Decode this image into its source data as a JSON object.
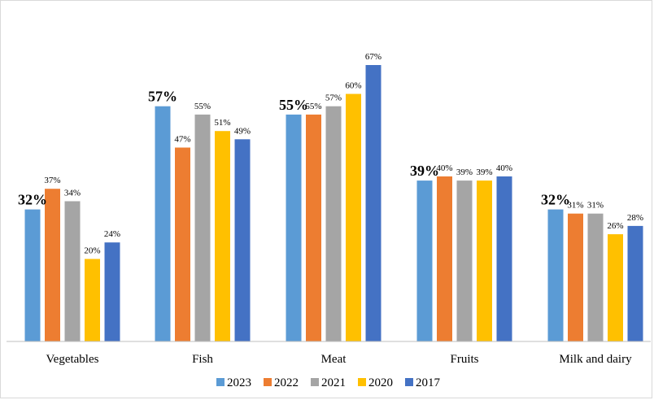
{
  "chart_data": {
    "type": "bar",
    "categories": [
      "Vegetables",
      "Fish",
      "Meat",
      "Fruits",
      "Milk and dairy"
    ],
    "series": [
      {
        "name": "2023",
        "color": "#5b9bd5",
        "values": [
          32,
          57,
          55,
          39,
          32
        ],
        "labels": [
          "32%",
          "57%",
          "55%",
          "39%",
          "32%"
        ]
      },
      {
        "name": "2022",
        "color": "#ed7d31",
        "values": [
          37,
          47,
          55,
          40,
          31
        ],
        "labels": [
          "37%",
          "47%",
          "55%",
          "40%",
          "31%"
        ]
      },
      {
        "name": "2021",
        "color": "#a5a5a5",
        "values": [
          34,
          55,
          57,
          39,
          31
        ],
        "labels": [
          "34%",
          "55%",
          "57%",
          "39%",
          "31%"
        ]
      },
      {
        "name": "2020",
        "color": "#ffc000",
        "values": [
          20,
          51,
          60,
          39,
          26
        ],
        "labels": [
          "20%",
          "51%",
          "60%",
          "39%",
          "26%"
        ]
      },
      {
        "name": "2017",
        "color": "#4472c4",
        "values": [
          24,
          49,
          67,
          40,
          28
        ],
        "labels": [
          "24%",
          "49%",
          "67%",
          "40%",
          "28%"
        ]
      }
    ],
    "ylim": [
      0,
      67
    ],
    "grid": false,
    "legend_position": "bottom-center",
    "highlighted_series": "2023"
  }
}
